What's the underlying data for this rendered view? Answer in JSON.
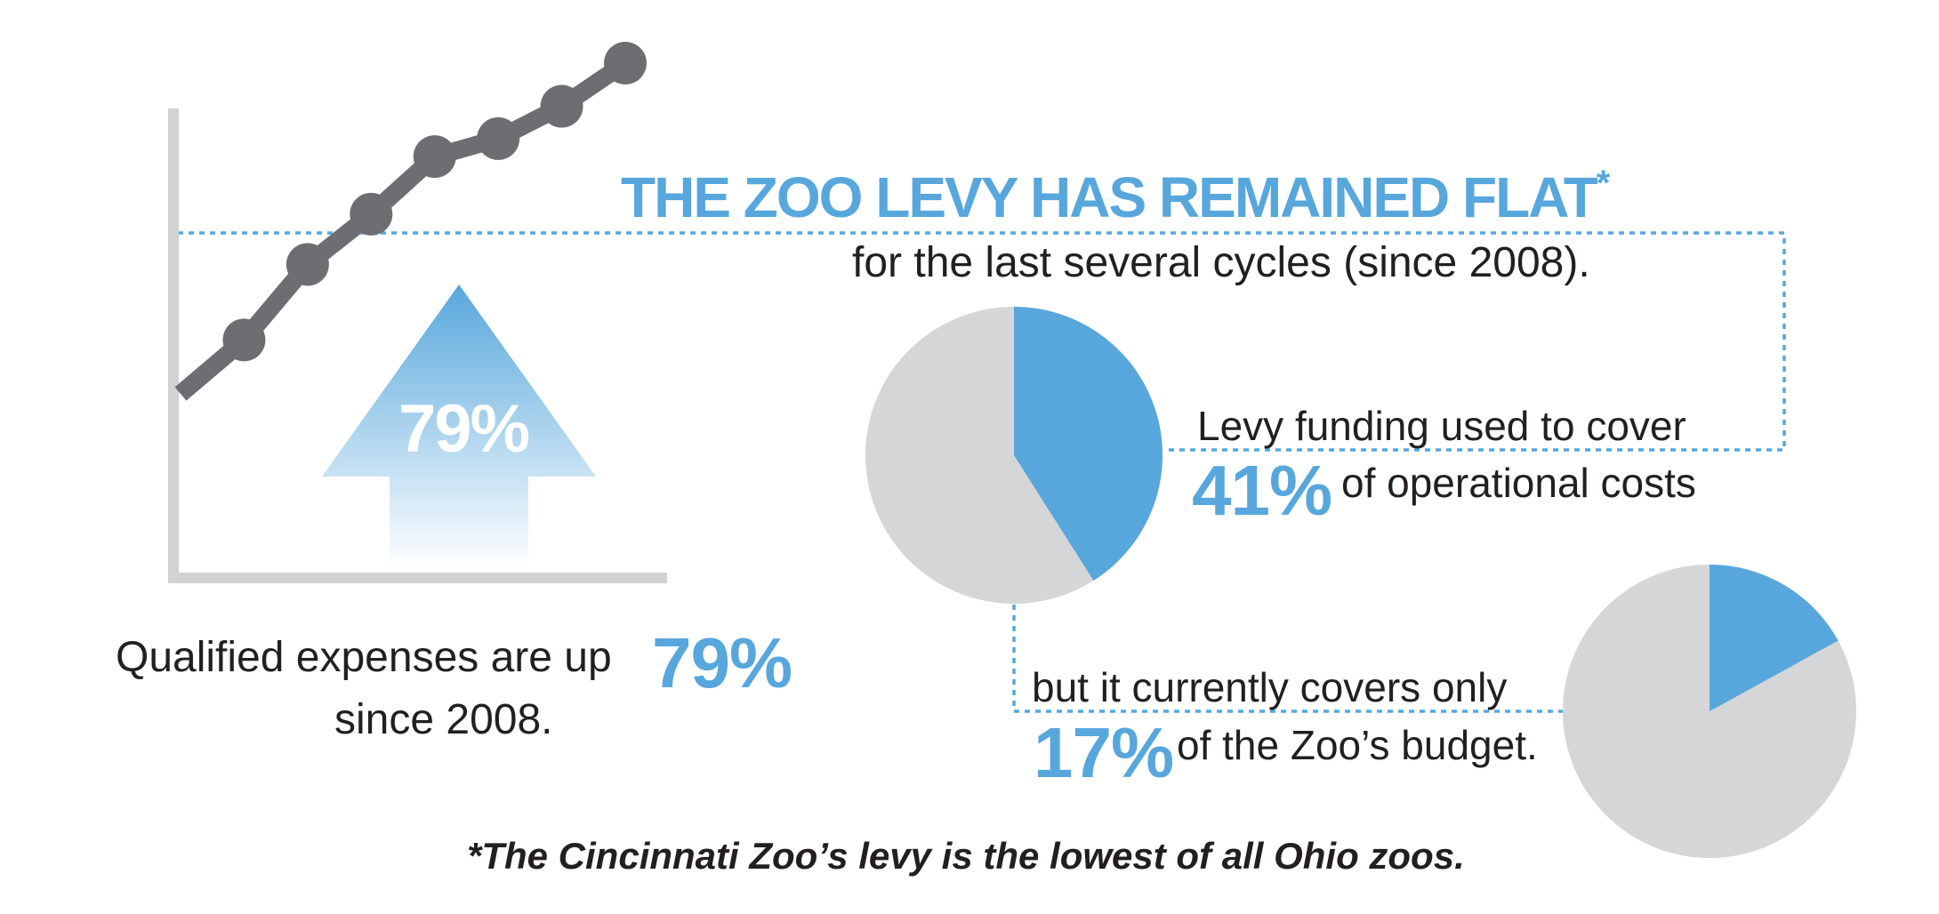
{
  "headline": {
    "text": "THE ZOO LEVY HAS REMAINED FLAT",
    "mark": "*"
  },
  "subheadline": "for the last several cycles (since 2008).",
  "expenses": {
    "line1": "Qualified expenses are up",
    "percent": "79%",
    "line2": "since 2008.",
    "arrow_label": "79%"
  },
  "operational_costs": {
    "line1": "Levy funding used to cover",
    "percent": "41%",
    "line2": "of operational costs"
  },
  "zoo_budget": {
    "line1": "but it currently covers only",
    "percent": "17%",
    "line2": "of the Zoo’s budget."
  },
  "footnote": "*The Cincinnati Zoo’s levy is the lowest of all Ohio zoos.",
  "colors": {
    "accent_blue": "#57a7dc",
    "line_gray": "#6d6e71",
    "pie_gray": "#d5d6d8",
    "axis_gray": "#d1d2d4",
    "text": "#231f20"
  },
  "chart_data": [
    {
      "type": "line",
      "title": "",
      "xlabel": "",
      "ylabel": "",
      "x": [
        1,
        2,
        3,
        4,
        5,
        6,
        7,
        8
      ],
      "values": [
        0,
        1.5,
        3.6,
        5.0,
        6.6,
        7.1,
        8.0,
        9.2
      ],
      "note": "unlabeled rising trend with 7 markers"
    },
    {
      "type": "pie",
      "slices": [
        {
          "label": "41%",
          "value": 41
        },
        {
          "label": "",
          "value": 59
        }
      ],
      "highlight_value": 41
    },
    {
      "type": "pie",
      "slices": [
        {
          "label": "17%",
          "value": 17
        },
        {
          "label": "",
          "value": 83
        }
      ],
      "highlight_value": 17
    }
  ]
}
